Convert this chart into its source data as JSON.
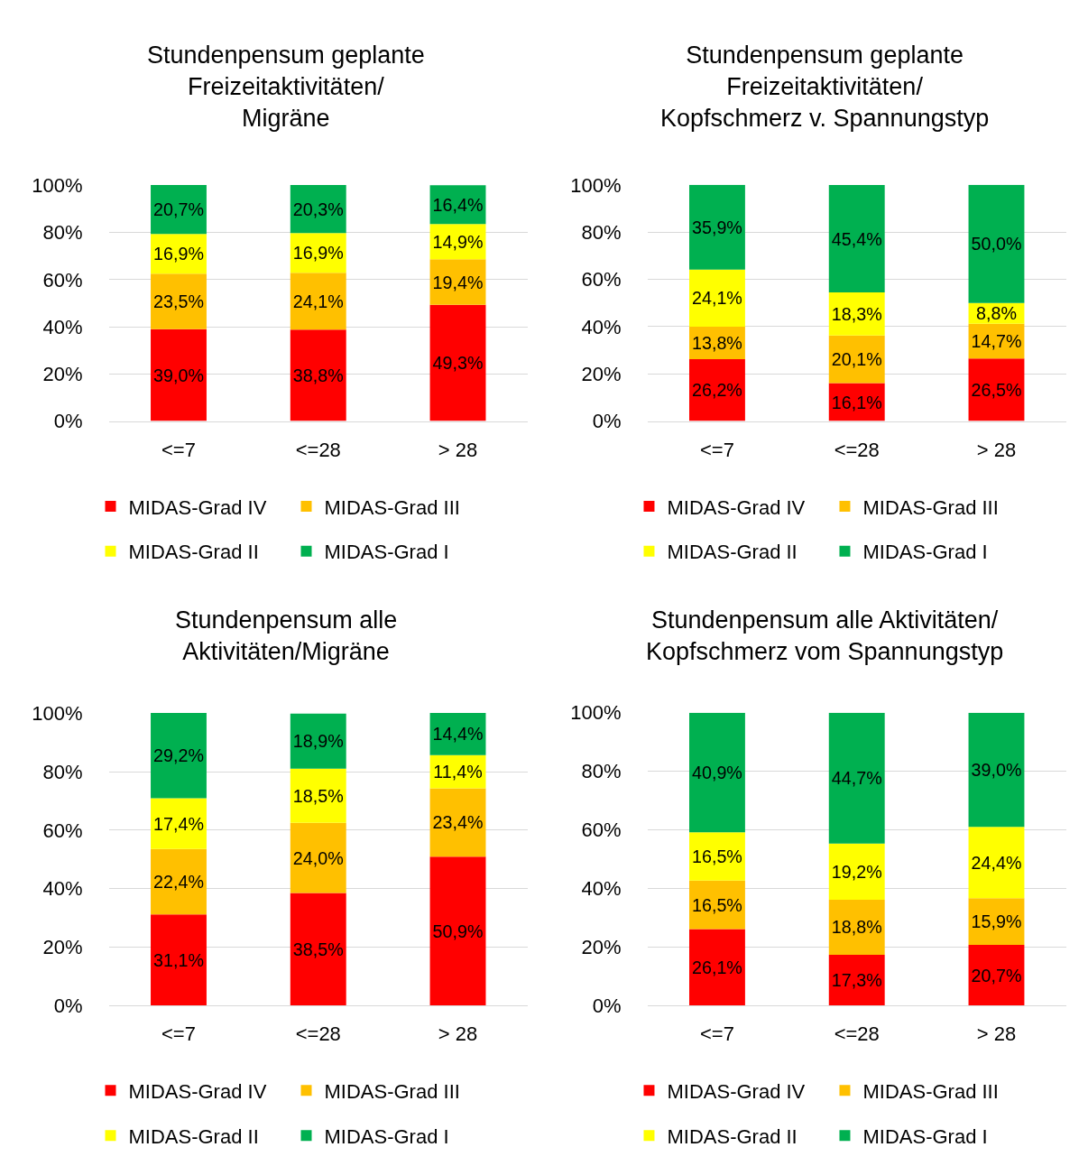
{
  "chart_data": [
    {
      "type": "bar",
      "title": "Stundenpensum geplante Freizeitaktivitäten/ Migräne",
      "categories": [
        "<=7",
        "<=28",
        "> 28"
      ],
      "stacked": true,
      "ylim": [
        0,
        100.2
      ],
      "yticks": [
        {
          "value": 0,
          "label": "0%"
        },
        {
          "value": 20,
          "label": "20%"
        },
        {
          "value": 40,
          "label": "40%"
        },
        {
          "value": 60,
          "label": "60%"
        },
        {
          "value": 80,
          "label": "80%"
        },
        {
          "value": 100,
          "label": "100%"
        }
      ],
      "grid": "y",
      "legend": "bottom",
      "series": [
        {
          "name": "MIDAS-Grad IV",
          "color": "#ff0000",
          "values": [
            39.0,
            38.8,
            49.3
          ],
          "value_labels": [
            "39,0%",
            "38,8%",
            "49,3%"
          ]
        },
        {
          "name": "MIDAS-Grad III",
          "color": "#ffc000",
          "values": [
            23.5,
            24.1,
            19.4
          ],
          "value_labels": [
            "23,5%",
            "24,1%",
            "19,4%"
          ]
        },
        {
          "name": "MIDAS-Grad II",
          "color": "#ffff00",
          "values": [
            16.9,
            16.9,
            14.9
          ],
          "value_labels": [
            "16,9%",
            "16,9%",
            "14,9%"
          ]
        },
        {
          "name": "MIDAS-Grad I",
          "color": "#00b050",
          "values": [
            20.7,
            20.3,
            16.4
          ],
          "value_labels": [
            "20,7%",
            "20,3%",
            "16,4%"
          ]
        }
      ]
    },
    {
      "type": "bar",
      "title": "Stundenpensum geplante Freizeitaktivitäten/ Kopfschmerz v. Spannungstyp",
      "categories": [
        "<=7",
        "<=28",
        "> 28"
      ],
      "stacked": true,
      "ylim": [
        0,
        100
      ],
      "yticks": [
        {
          "value": 0,
          "label": "0%"
        },
        {
          "value": 20,
          "label": "20%"
        },
        {
          "value": 40,
          "label": "40%"
        },
        {
          "value": 60,
          "label": "60%"
        },
        {
          "value": 80,
          "label": "80%"
        },
        {
          "value": 100,
          "label": "100%"
        }
      ],
      "grid": "y",
      "legend": "bottom",
      "series": [
        {
          "name": "MIDAS-Grad IV",
          "color": "#ff0000",
          "values": [
            26.2,
            16.1,
            26.5
          ],
          "value_labels": [
            "26,2%",
            "16,1%",
            "26,5%"
          ]
        },
        {
          "name": "MIDAS-Grad III",
          "color": "#ffc000",
          "values": [
            13.8,
            20.1,
            14.7
          ],
          "value_labels": [
            "13,8%",
            "20,1%",
            "14,7%"
          ]
        },
        {
          "name": "MIDAS-Grad II",
          "color": "#ffff00",
          "values": [
            24.1,
            18.3,
            8.8
          ],
          "value_labels": [
            "24,1%",
            "18,3%",
            "8,8%"
          ]
        },
        {
          "name": "MIDAS-Grad I",
          "color": "#00b050",
          "values": [
            35.9,
            45.4,
            50.0
          ],
          "value_labels": [
            "35,9%",
            "45,4%",
            "50,0%"
          ]
        }
      ]
    },
    {
      "type": "bar",
      "title": "Stundenpensum alle Aktivitäten/Migräne",
      "categories": [
        "<=7",
        "<=28",
        "> 28"
      ],
      "stacked": true,
      "ylim": [
        0,
        100.2
      ],
      "yticks": [
        {
          "value": 0,
          "label": "0%"
        },
        {
          "value": 20,
          "label": "20%"
        },
        {
          "value": 40,
          "label": "40%"
        },
        {
          "value": 60,
          "label": "60%"
        },
        {
          "value": 80,
          "label": "80%"
        },
        {
          "value": 100,
          "label": "100%"
        }
      ],
      "grid": "y",
      "legend": "bottom",
      "series": [
        {
          "name": "MIDAS-Grad IV",
          "color": "#ff0000",
          "values": [
            31.1,
            38.5,
            50.9
          ],
          "value_labels": [
            "31,1%",
            "38,5%",
            "50,9%"
          ]
        },
        {
          "name": "MIDAS-Grad III",
          "color": "#ffc000",
          "values": [
            22.4,
            24.0,
            23.4
          ],
          "value_labels": [
            "22,4%",
            "24,0%",
            "23,4%"
          ]
        },
        {
          "name": "MIDAS-Grad II",
          "color": "#ffff00",
          "values": [
            17.4,
            18.5,
            11.4
          ],
          "value_labels": [
            "17,4%",
            "18,5%",
            "11,4%"
          ]
        },
        {
          "name": "MIDAS-Grad I",
          "color": "#00b050",
          "values": [
            29.2,
            18.9,
            14.4
          ],
          "value_labels": [
            "29,2%",
            "18,9%",
            "14,4%"
          ]
        }
      ]
    },
    {
      "type": "bar",
      "title": "Stundenpensum alle Aktivitäten/ Kopfschmerz vom Spannungstyp",
      "categories": [
        "<=7",
        "<=28",
        "> 28"
      ],
      "stacked": true,
      "ylim": [
        0,
        100
      ],
      "yticks": [
        {
          "value": 0,
          "label": "0%"
        },
        {
          "value": 20,
          "label": "20%"
        },
        {
          "value": 40,
          "label": "40%"
        },
        {
          "value": 60,
          "label": "60%"
        },
        {
          "value": 80,
          "label": "80%"
        },
        {
          "value": 100,
          "label": "100%"
        }
      ],
      "grid": "y",
      "legend": "bottom",
      "series": [
        {
          "name": "MIDAS-Grad IV",
          "color": "#ff0000",
          "values": [
            26.1,
            17.3,
            20.7
          ],
          "value_labels": [
            "26,1%",
            "17,3%",
            "20,7%"
          ]
        },
        {
          "name": "MIDAS-Grad III",
          "color": "#ffc000",
          "values": [
            16.5,
            18.8,
            15.9
          ],
          "value_labels": [
            "16,5%",
            "18,8%",
            "15,9%"
          ]
        },
        {
          "name": "MIDAS-Grad II",
          "color": "#ffff00",
          "values": [
            16.5,
            19.2,
            24.4
          ],
          "value_labels": [
            "16,5%",
            "19,2%",
            "24,4%"
          ]
        },
        {
          "name": "MIDAS-Grad I",
          "color": "#00b050",
          "values": [
            40.9,
            44.7,
            39.0
          ],
          "value_labels": [
            "40,9%",
            "44,7%",
            "39,0%"
          ]
        }
      ]
    }
  ]
}
